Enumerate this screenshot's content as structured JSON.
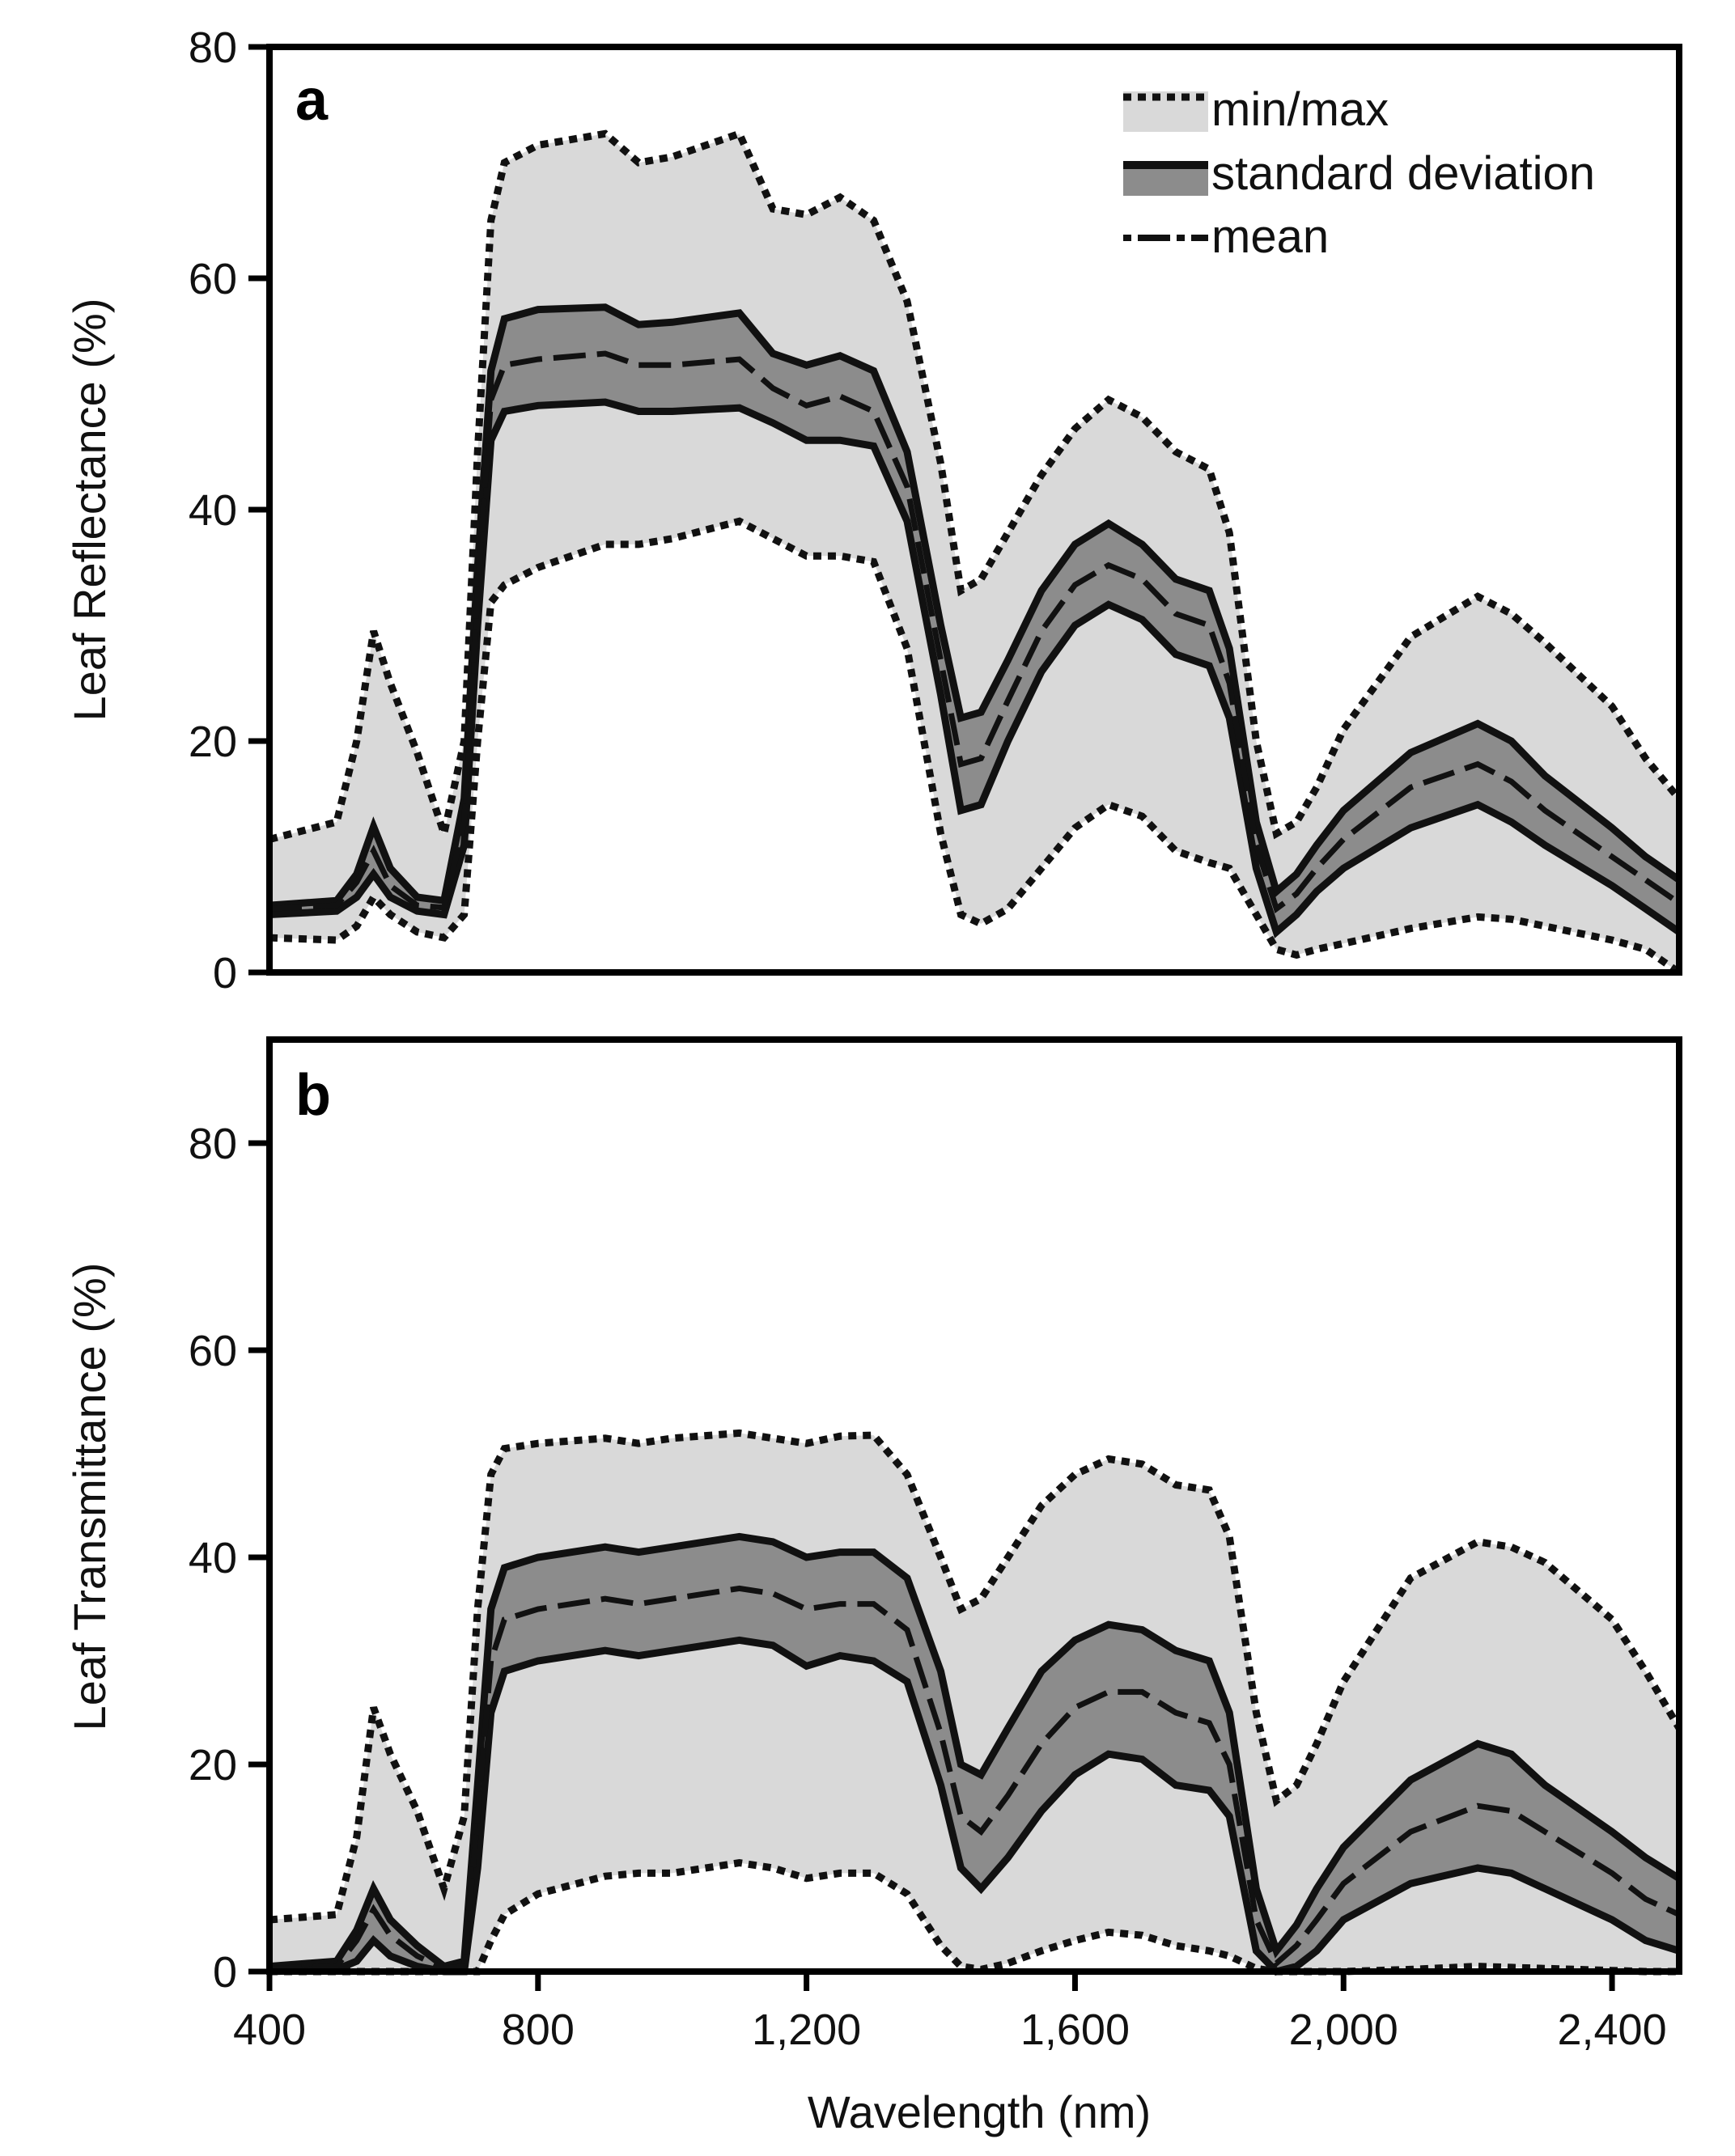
{
  "chart_data": [
    {
      "type": "line",
      "panel": "a",
      "ylabel": "Leaf Reflectance (%)",
      "xlabel": "",
      "xlim": [
        400,
        2500
      ],
      "ylim": [
        0,
        80
      ],
      "yticks": [
        0,
        20,
        40,
        60,
        80
      ],
      "ytick_labels": [
        "0",
        "20",
        "40",
        "60",
        "80"
      ],
      "legend": {
        "position": "top-right",
        "entries": [
          {
            "label": "min/max",
            "style": "dotted-line-light-fill"
          },
          {
            "label": "standard deviation",
            "style": "solid-line-dark-fill"
          },
          {
            "label": "mean",
            "style": "dash-dot-line"
          }
        ]
      },
      "x": [
        400,
        500,
        530,
        555,
        580,
        620,
        660,
        690,
        710,
        730,
        750,
        800,
        900,
        950,
        1000,
        1100,
        1150,
        1200,
        1250,
        1300,
        1350,
        1400,
        1430,
        1460,
        1500,
        1550,
        1600,
        1650,
        1700,
        1750,
        1800,
        1830,
        1870,
        1900,
        1930,
        1960,
        2000,
        2100,
        2200,
        2250,
        2300,
        2400,
        2450,
        2500
      ],
      "series": [
        {
          "name": "max",
          "values": [
            11.5,
            13.0,
            20.0,
            29.5,
            25.0,
            19.0,
            12.0,
            20.0,
            45.0,
            65.0,
            70.0,
            71.5,
            72.5,
            70.0,
            70.5,
            72.5,
            66.0,
            65.5,
            67.0,
            65.0,
            58.0,
            44.0,
            33.0,
            34.0,
            38.0,
            43.0,
            47.0,
            49.5,
            48.0,
            45.0,
            43.5,
            38.0,
            20.0,
            12.0,
            13.0,
            16.0,
            21.0,
            29.0,
            32.5,
            31.0,
            28.5,
            23.0,
            18.5,
            15.0
          ]
        },
        {
          "name": "std_upper",
          "values": [
            5.8,
            6.2,
            8.5,
            12.6,
            9.0,
            6.5,
            6.2,
            15.0,
            35.0,
            52.0,
            56.5,
            57.3,
            57.5,
            56.0,
            56.2,
            57.0,
            53.5,
            52.5,
            53.3,
            52.0,
            45.0,
            30.0,
            22.0,
            22.5,
            27.0,
            33.0,
            37.0,
            38.8,
            37.0,
            34.0,
            33.0,
            28.0,
            13.0,
            7.0,
            8.5,
            11.0,
            14.0,
            19.0,
            21.5,
            20.0,
            17.0,
            12.5,
            10.0,
            8.0
          ]
        },
        {
          "name": "mean",
          "values": [
            5.5,
            5.8,
            7.8,
            10.5,
            7.5,
            5.8,
            5.6,
            13.0,
            33.0,
            49.5,
            52.5,
            53.0,
            53.5,
            52.5,
            52.5,
            53.0,
            50.5,
            49.0,
            49.8,
            48.5,
            42.0,
            27.0,
            18.0,
            18.5,
            23.5,
            29.5,
            33.5,
            35.2,
            34.0,
            31.0,
            30.0,
            25.0,
            11.0,
            5.5,
            6.8,
            9.0,
            11.5,
            16.0,
            18.0,
            16.5,
            14.0,
            10.0,
            8.0,
            6.0
          ]
        },
        {
          "name": "std_lower",
          "values": [
            5.0,
            5.3,
            6.5,
            8.5,
            6.5,
            5.3,
            5.0,
            11.0,
            30.0,
            46.0,
            48.5,
            49.0,
            49.3,
            48.5,
            48.5,
            48.8,
            47.5,
            46.0,
            46.0,
            45.5,
            39.0,
            24.0,
            14.0,
            14.5,
            20.0,
            26.0,
            30.0,
            31.8,
            30.5,
            27.5,
            26.5,
            22.0,
            9.0,
            3.5,
            5.0,
            7.0,
            9.0,
            12.5,
            14.5,
            13.0,
            11.0,
            7.5,
            5.5,
            3.5
          ]
        },
        {
          "name": "min",
          "values": [
            3.0,
            2.8,
            4.0,
            6.5,
            5.0,
            3.5,
            3.0,
            5.0,
            20.0,
            32.0,
            33.5,
            35.0,
            37.0,
            37.0,
            37.5,
            39.0,
            37.5,
            36.0,
            36.0,
            35.5,
            28.0,
            12.0,
            5.0,
            4.2,
            5.5,
            9.0,
            12.5,
            14.5,
            13.5,
            10.5,
            9.5,
            9.0,
            5.0,
            2.0,
            1.5,
            2.0,
            2.5,
            3.8,
            4.8,
            4.6,
            4.0,
            2.8,
            2.0,
            0.0
          ]
        }
      ]
    },
    {
      "type": "line",
      "panel": "b",
      "ylabel": "Leaf Transmittance (%)",
      "xlabel": "Wavelength (nm)",
      "xlim": [
        400,
        2500
      ],
      "ylim": [
        0,
        90
      ],
      "yticks": [
        0,
        20,
        40,
        60,
        80
      ],
      "ytick_labels": [
        "0",
        "20",
        "40",
        "60",
        "80"
      ],
      "xticks": [
        400,
        800,
        1200,
        1600,
        2000,
        2400
      ],
      "xtick_labels": [
        "400",
        "800",
        "1,200",
        "1,600",
        "2,000",
        "2,400"
      ],
      "x": [
        400,
        500,
        530,
        555,
        580,
        620,
        660,
        690,
        710,
        730,
        750,
        800,
        900,
        950,
        1000,
        1100,
        1150,
        1200,
        1250,
        1300,
        1350,
        1400,
        1430,
        1460,
        1500,
        1550,
        1600,
        1650,
        1700,
        1750,
        1800,
        1830,
        1870,
        1900,
        1930,
        1960,
        2000,
        2100,
        2200,
        2250,
        2300,
        2400,
        2450,
        2500
      ],
      "series": [
        {
          "name": "max",
          "values": [
            5.0,
            5.5,
            13.0,
            25.5,
            21.0,
            15.5,
            8.0,
            15.0,
            35.0,
            48.0,
            50.5,
            51.0,
            51.5,
            51.0,
            51.5,
            52.0,
            51.5,
            51.0,
            51.7,
            51.8,
            48.0,
            40.0,
            35.0,
            36.0,
            40.0,
            45.0,
            48.0,
            49.5,
            49.0,
            47.0,
            46.5,
            42.0,
            25.0,
            16.5,
            18.0,
            22.0,
            28.0,
            38.0,
            41.5,
            41.0,
            39.5,
            34.0,
            29.0,
            23.5
          ]
        },
        {
          "name": "std_upper",
          "values": [
            0.5,
            1.0,
            4.0,
            8.0,
            5.0,
            2.5,
            0.5,
            1.0,
            18.0,
            35.0,
            39.0,
            40.0,
            41.0,
            40.5,
            41.0,
            42.0,
            41.5,
            40.0,
            40.5,
            40.5,
            38.0,
            29.0,
            20.0,
            19.0,
            23.5,
            29.0,
            32.0,
            33.5,
            33.0,
            31.0,
            30.0,
            25.0,
            8.0,
            2.0,
            4.5,
            8.0,
            12.0,
            18.5,
            22.0,
            21.0,
            18.0,
            13.5,
            11.0,
            9.0
          ]
        },
        {
          "name": "mean",
          "values": [
            0.3,
            0.5,
            3.0,
            6.0,
            3.5,
            1.5,
            0.3,
            0.5,
            15.0,
            30.0,
            34.0,
            35.0,
            36.0,
            35.5,
            36.0,
            37.0,
            36.5,
            35.0,
            35.5,
            35.5,
            33.0,
            23.0,
            15.0,
            13.5,
            17.0,
            22.0,
            25.5,
            27.0,
            27.0,
            25.0,
            24.0,
            20.0,
            5.0,
            0.8,
            2.5,
            5.0,
            8.5,
            13.5,
            16.0,
            15.5,
            13.5,
            9.5,
            7.0,
            5.5
          ]
        },
        {
          "name": "std_lower",
          "values": [
            0.0,
            0.2,
            1.0,
            3.0,
            1.5,
            0.5,
            0.0,
            0.0,
            10.0,
            25.0,
            29.0,
            30.0,
            31.0,
            30.5,
            31.0,
            32.0,
            31.5,
            29.5,
            30.5,
            30.0,
            28.0,
            18.0,
            10.0,
            8.0,
            11.0,
            15.5,
            19.0,
            21.0,
            20.5,
            18.0,
            17.5,
            15.0,
            2.0,
            0.0,
            0.5,
            2.0,
            5.0,
            8.5,
            10.0,
            9.5,
            8.0,
            5.0,
            3.0,
            2.0
          ]
        },
        {
          "name": "min",
          "values": [
            0.0,
            0.0,
            0.0,
            0.0,
            0.0,
            0.0,
            0.0,
            0.0,
            0.0,
            3.0,
            5.5,
            7.5,
            9.2,
            9.5,
            9.5,
            10.5,
            10.0,
            9.0,
            9.5,
            9.5,
            7.5,
            2.5,
            0.5,
            0.2,
            0.8,
            2.0,
            3.0,
            3.8,
            3.5,
            2.5,
            2.0,
            1.5,
            0.3,
            0.0,
            0.0,
            0.0,
            0.0,
            0.2,
            0.5,
            0.4,
            0.3,
            0.1,
            0.0,
            0.0
          ]
        }
      ]
    }
  ]
}
